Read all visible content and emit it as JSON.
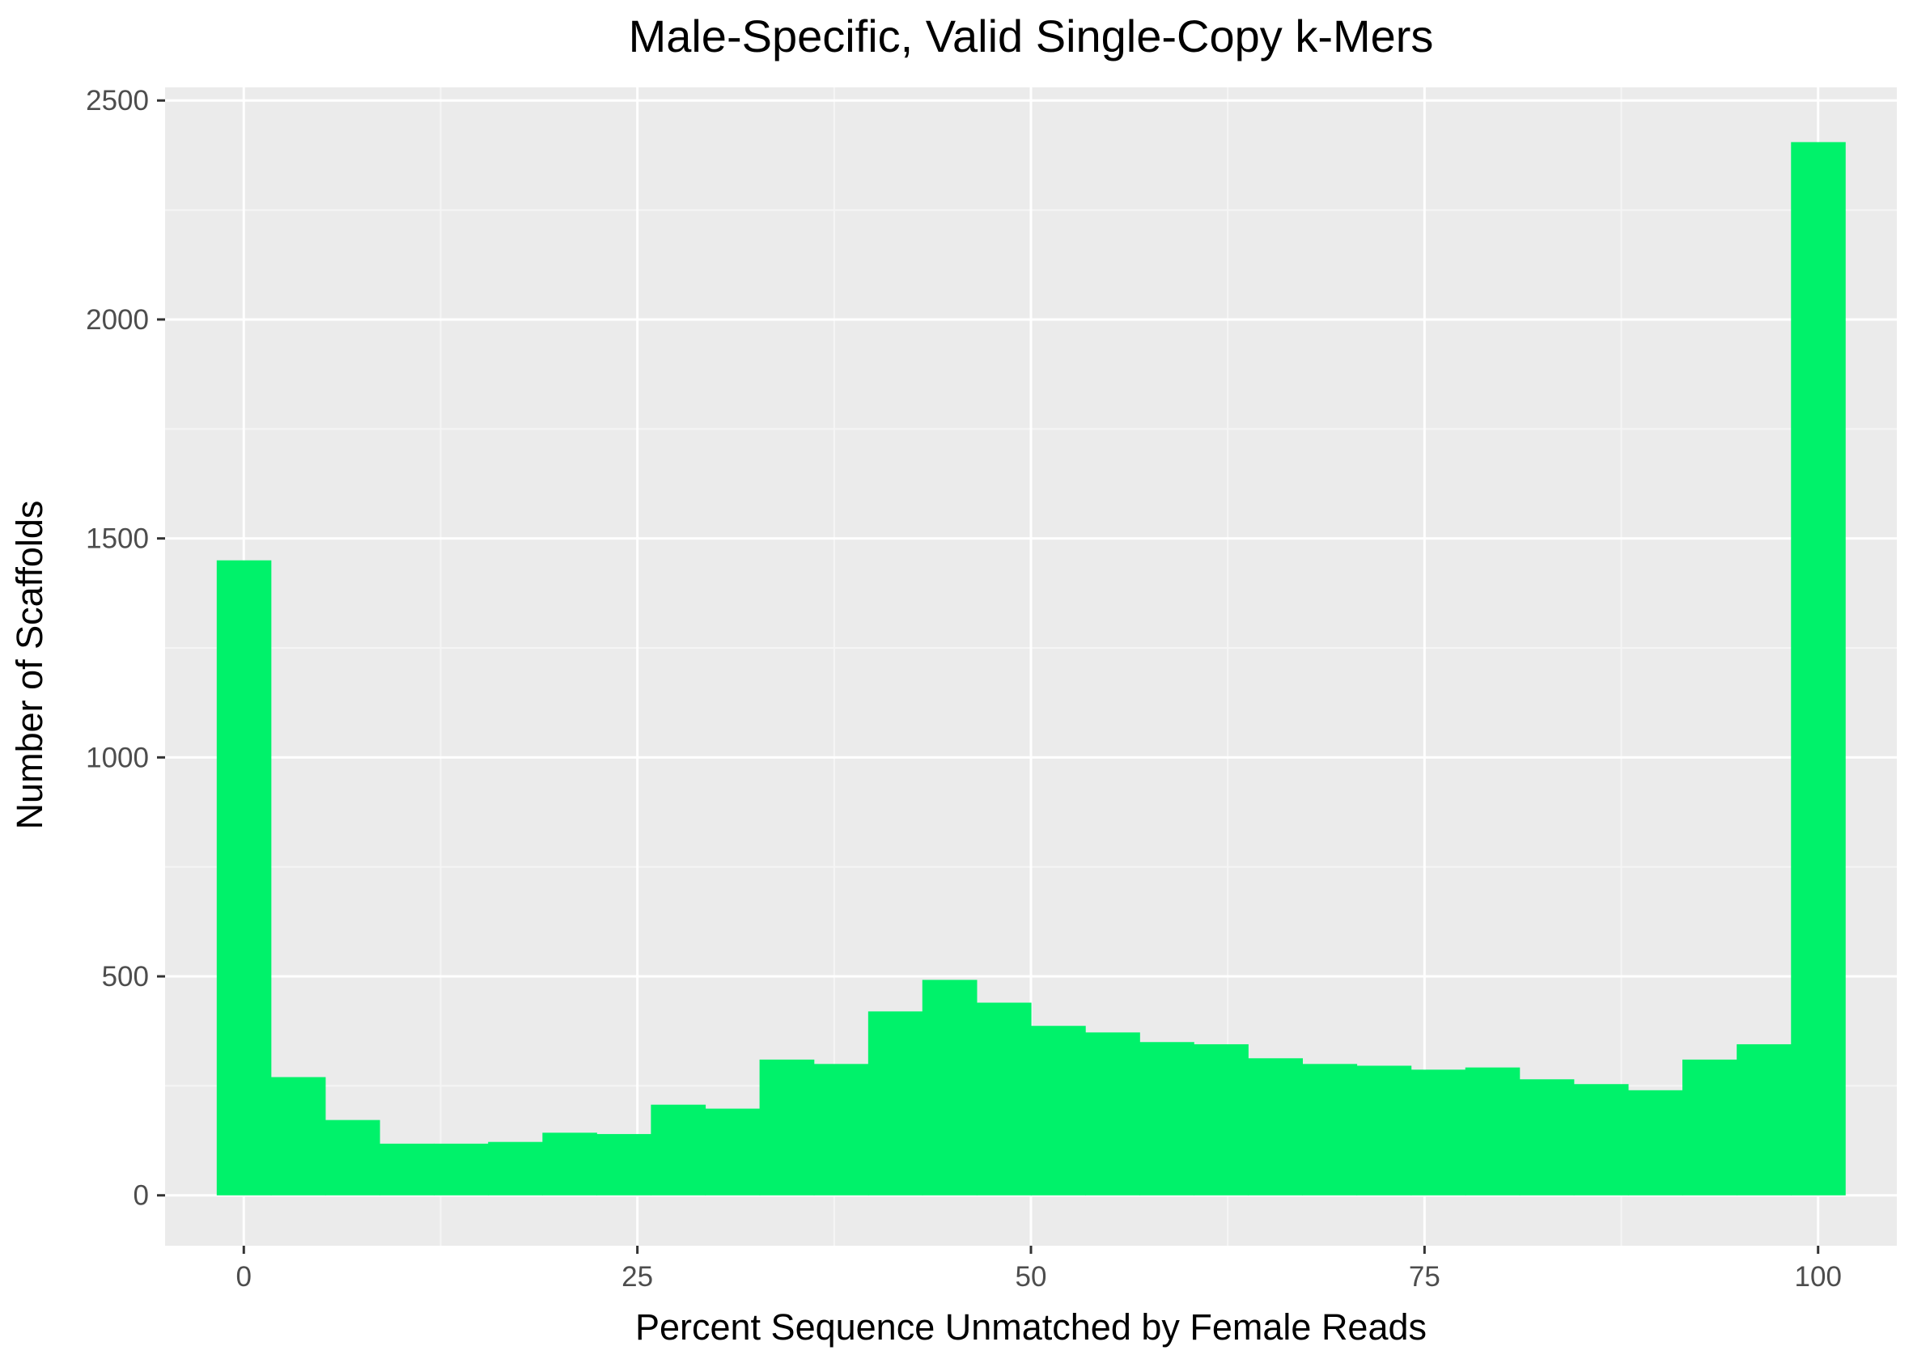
{
  "chart_data": {
    "type": "bar",
    "title": "Male-Specific, Valid Single-Copy k-Mers",
    "xlabel": "Percent Sequence Unmatched by Female Reads",
    "ylabel": "Number of Scaffolds",
    "xlim": [
      -5,
      105
    ],
    "ylim": [
      -115,
      2530
    ],
    "x_ticks": [
      0,
      25,
      50,
      75,
      100
    ],
    "y_ticks": [
      0,
      500,
      1000,
      1500,
      2000,
      2500
    ],
    "x_tick_labels": [
      "0",
      "25",
      "50",
      "75",
      "100"
    ],
    "y_tick_labels": [
      "0",
      "500",
      "1000",
      "1500",
      "2000",
      "2500"
    ],
    "bin_width": 3.448,
    "bins": [
      {
        "x0": -1.72,
        "x1": 1.72,
        "count": 1450
      },
      {
        "x0": 1.72,
        "x1": 5.17,
        "count": 270
      },
      {
        "x0": 5.17,
        "x1": 8.62,
        "count": 172
      },
      {
        "x0": 8.62,
        "x1": 12.07,
        "count": 118
      },
      {
        "x0": 12.07,
        "x1": 15.52,
        "count": 118
      },
      {
        "x0": 15.52,
        "x1": 18.97,
        "count": 122
      },
      {
        "x0": 18.97,
        "x1": 22.41,
        "count": 143
      },
      {
        "x0": 22.41,
        "x1": 25.86,
        "count": 140
      },
      {
        "x0": 25.86,
        "x1": 29.31,
        "count": 207
      },
      {
        "x0": 29.31,
        "x1": 32.76,
        "count": 198
      },
      {
        "x0": 32.76,
        "x1": 36.21,
        "count": 310
      },
      {
        "x0": 36.21,
        "x1": 39.66,
        "count": 300
      },
      {
        "x0": 39.66,
        "x1": 43.1,
        "count": 420
      },
      {
        "x0": 43.1,
        "x1": 46.55,
        "count": 492
      },
      {
        "x0": 46.55,
        "x1": 50.0,
        "count": 440
      },
      {
        "x0": 50.0,
        "x1": 53.45,
        "count": 387
      },
      {
        "x0": 53.45,
        "x1": 56.9,
        "count": 372
      },
      {
        "x0": 56.9,
        "x1": 60.34,
        "count": 350
      },
      {
        "x0": 60.34,
        "x1": 63.79,
        "count": 345
      },
      {
        "x0": 63.79,
        "x1": 67.24,
        "count": 313
      },
      {
        "x0": 67.24,
        "x1": 70.69,
        "count": 300
      },
      {
        "x0": 70.69,
        "x1": 74.14,
        "count": 296
      },
      {
        "x0": 74.14,
        "x1": 77.59,
        "count": 287
      },
      {
        "x0": 77.59,
        "x1": 81.03,
        "count": 292
      },
      {
        "x0": 81.03,
        "x1": 84.48,
        "count": 265
      },
      {
        "x0": 84.48,
        "x1": 87.93,
        "count": 254
      },
      {
        "x0": 87.93,
        "x1": 91.38,
        "count": 240
      },
      {
        "x0": 91.38,
        "x1": 94.83,
        "count": 310
      },
      {
        "x0": 94.83,
        "x1": 98.28,
        "count": 345
      },
      {
        "x0": 98.28,
        "x1": 101.72,
        "count": 2405
      }
    ],
    "grid": true,
    "legend": "none",
    "colors": {
      "bar_fill": "#00f26a",
      "panel_background": "#ebebeb",
      "grid_major": "#ffffff",
      "grid_minor": "#f5f5f5",
      "tick_label": "#4d4d4d",
      "tick_mark": "#333333"
    }
  }
}
